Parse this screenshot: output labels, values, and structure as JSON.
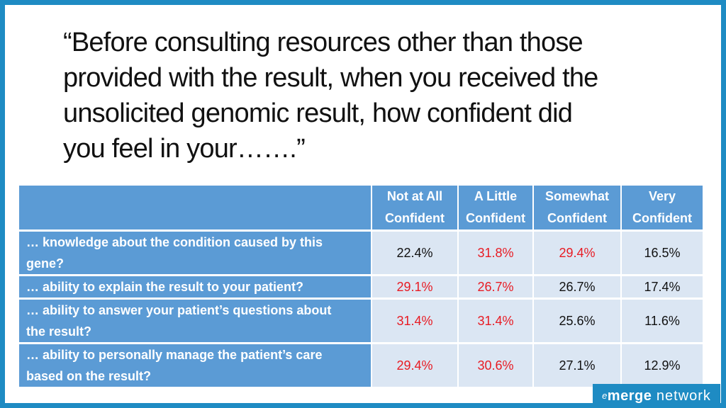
{
  "slide": {
    "title_lines": [
      "“Before consulting resources other than those",
      "provided with the result, when you received the",
      "unsolicited genomic result, how confident did",
      "you feel in your…….”"
    ]
  },
  "table": {
    "headers": [
      [
        "Not at All",
        "Confident"
      ],
      [
        "A Little",
        "Confident"
      ],
      [
        "Somewhat",
        "Confident"
      ],
      [
        "Very",
        "Confident"
      ]
    ],
    "rows": [
      {
        "label": [
          "… knowledge about the condition caused by this",
          "gene?"
        ],
        "values": [
          "22.4%",
          "31.8%",
          "29.4%",
          "16.5%"
        ],
        "highlight": [
          false,
          true,
          true,
          false
        ]
      },
      {
        "label": [
          "… ability to explain the result to your patient?"
        ],
        "values": [
          "29.1%",
          "26.7%",
          "26.7%",
          "17.4%"
        ],
        "highlight": [
          true,
          true,
          false,
          false
        ]
      },
      {
        "label": [
          "… ability to answer your patient’s questions about",
          "the result?"
        ],
        "values": [
          "31.4%",
          "31.4%",
          "25.6%",
          "11.6%"
        ],
        "highlight": [
          true,
          true,
          false,
          false
        ]
      },
      {
        "label": [
          "… ability to personally manage the patient’s care",
          "based on the result?"
        ],
        "values": [
          "29.4%",
          "30.6%",
          "27.1%",
          "12.9%"
        ],
        "highlight": [
          true,
          true,
          false,
          false
        ]
      }
    ],
    "highlight_color": "#e81b23",
    "header_color": "#5b9bd5",
    "cell_color": "#dbe6f3"
  },
  "logo": {
    "prefix": "e",
    "bold": "merge",
    "suffix": " network"
  }
}
